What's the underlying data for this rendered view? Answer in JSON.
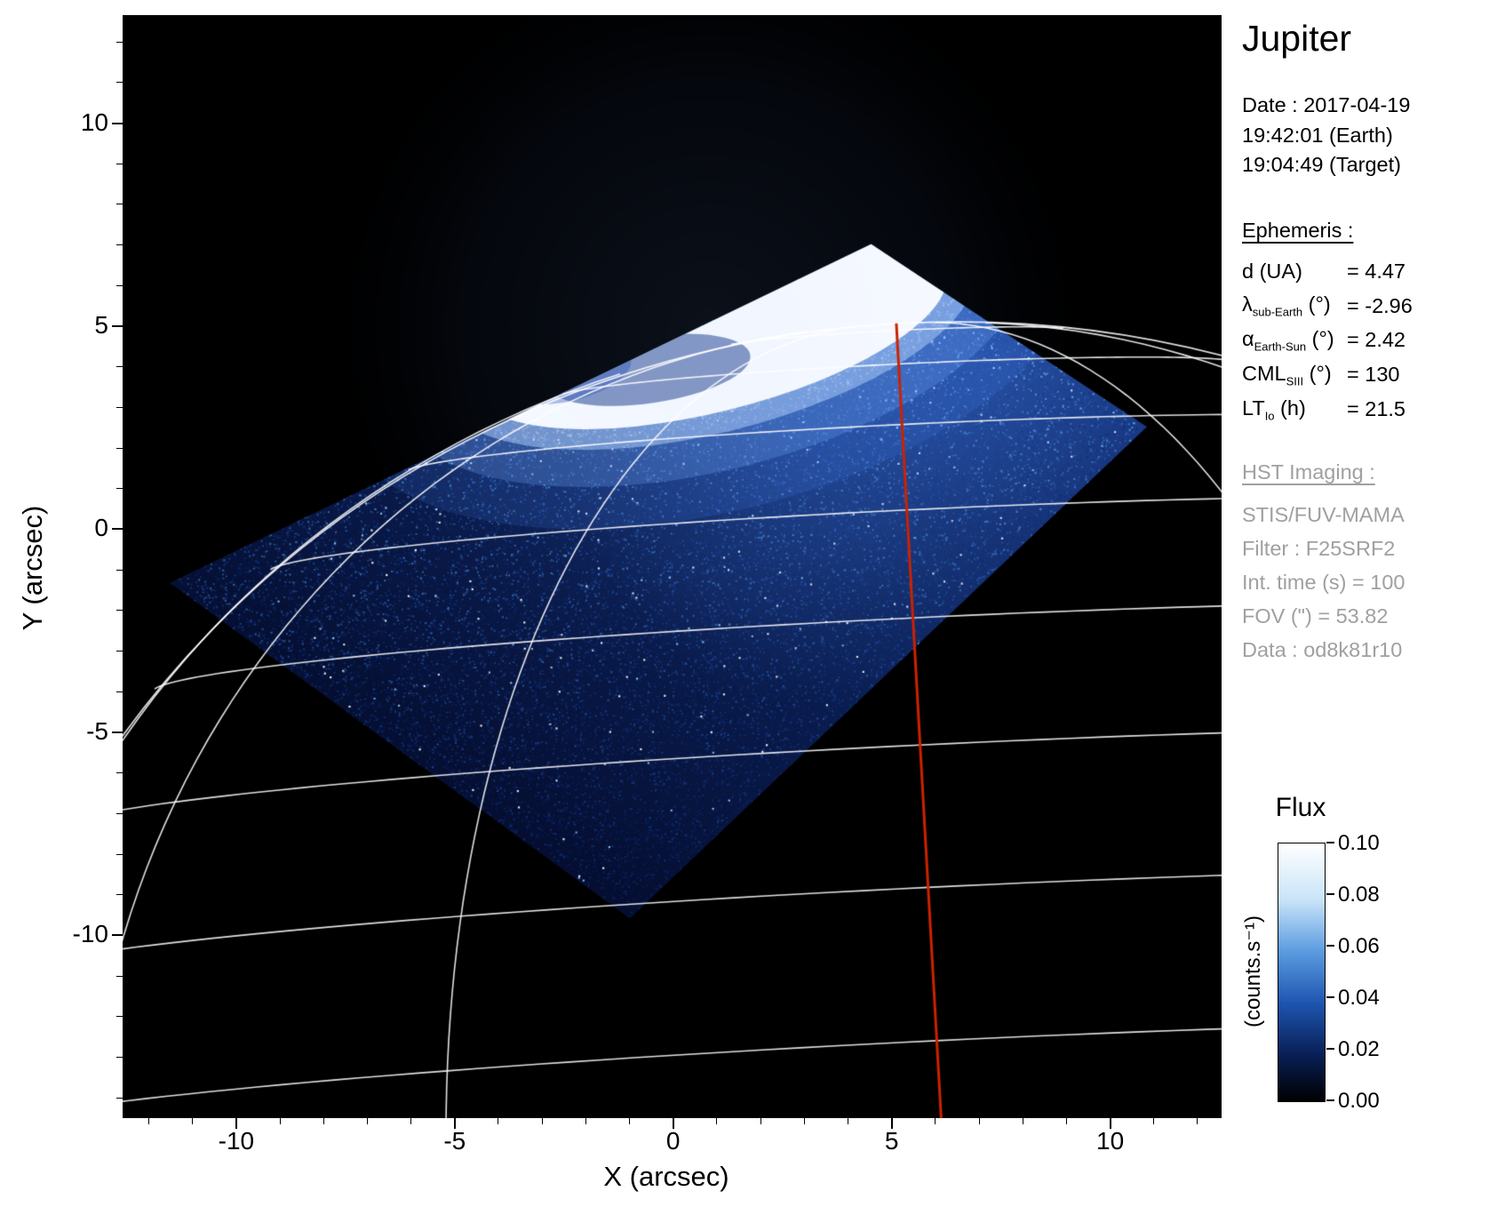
{
  "title": "Jupiter",
  "observation": {
    "date_line": "Date : 2017-04-19",
    "time_earth": "19:42:01 (Earth)",
    "time_target": "19:04:49 (Target)"
  },
  "ephemeris": {
    "header": "Ephemeris :",
    "rows": [
      {
        "pre": "d (UA)",
        "sub": "",
        "post": "",
        "value": "= 4.47"
      },
      {
        "pre": "λ",
        "sub": "sub-Earth",
        "post": " (°)",
        "value": "= -2.96"
      },
      {
        "pre": "α",
        "sub": "Earth-Sun",
        "post": " (°)",
        "value": "= 2.42"
      },
      {
        "pre": "CML",
        "sub": "SIII",
        "post": " (°)",
        "value": "= 130"
      },
      {
        "pre": "LT",
        "sub": "Io",
        "post": " (h)",
        "value": "= 21.5"
      }
    ]
  },
  "hst": {
    "header": "HST Imaging :",
    "lines": [
      "STIS/FUV-MAMA",
      "Filter : F25SRF2",
      "Int. time (s) = 100",
      "FOV (\") = 53.82",
      "Data : od8k81r10"
    ]
  },
  "chart_data": {
    "type": "heatmap",
    "title": "Jupiter",
    "description": "HST/STIS far-ultraviolet image of Jupiter's northern aurora; bright auroral oval at top, noisy blue detector field (rotated square FOV), white planetocentric lat/lon graticule, red curve marking the central meridian (CML 130 SIII).",
    "axes": {
      "x_label": "X (arcsec)",
      "y_label": "Y (arcsec)",
      "x_ticks": [
        -10,
        -5,
        0,
        5,
        10
      ],
      "y_ticks": [
        10,
        5,
        0,
        -5,
        -10
      ],
      "x_range": [
        -12.6,
        12.55
      ],
      "y_range": [
        -14.5,
        12.66
      ],
      "grid": false
    },
    "colorbar": {
      "title": "Flux",
      "unit": "(counts.s⁻¹)",
      "min": 0.0,
      "max": 0.1,
      "tick_labels": [
        "0.10",
        "0.08",
        "0.06",
        "0.04",
        "0.02",
        "0.00"
      ],
      "stops": [
        [
          0,
          "#000000"
        ],
        [
          0.18,
          "#081f55"
        ],
        [
          0.38,
          "#1e55b0"
        ],
        [
          0.58,
          "#5b9be0"
        ],
        [
          0.78,
          "#c8e4f8"
        ],
        [
          1,
          "#ffffff"
        ]
      ]
    },
    "detector_fov": {
      "fov_arcsec": 53.82,
      "polygon_arcsec": [
        [
          4.53,
          7.02
        ],
        [
          10.84,
          2.52
        ],
        [
          -0.99,
          -9.58
        ],
        [
          -11.52,
          -1.32
        ]
      ]
    },
    "aurora_oval": {
      "center_arcsec": [
        0.82,
        4.93
      ],
      "semi_major_arcsec": 5.6,
      "semi_minor_arcsec": 2.05,
      "rotation_deg": -14
    },
    "diffuse_glow": [
      {
        "center_arcsec": [
          3.8,
          2.2
        ],
        "radius_arcsec": 6.2,
        "alpha": 0.26
      },
      {
        "center_arcsec": [
          7.4,
          4.0
        ],
        "radius_arcsec": 3.8,
        "alpha": 0.2
      }
    ],
    "projection": {
      "center_arcsec": [
        6.3,
        -17.7
      ],
      "radius_arcsec": 22.8,
      "view_lat_deg": -2.96,
      "rotation_deg": -3,
      "latitudes_deg": [
        0,
        10,
        20,
        30,
        40,
        50,
        60,
        70,
        80
      ],
      "meridians_rel_deg": [
        -80,
        -60,
        -30,
        30,
        60
      ],
      "red_meridian_rel_deg": 0
    },
    "ephemeris_values": {
      "d_ua": 4.47,
      "lambda_sub_earth_deg": -2.96,
      "alpha_earth_sun_deg": 2.42,
      "cml_siii_deg": 130,
      "lt_io_h": 21.5
    },
    "colors": {
      "background": "#000000",
      "graticule": "#ffffff",
      "central_meridian_red": "#cc2200",
      "speckle_deep": "#050e30",
      "speckle_mid": "#0c2158",
      "speckle_top": "#1a3a85",
      "aurora_core": "#ffffff"
    }
  }
}
